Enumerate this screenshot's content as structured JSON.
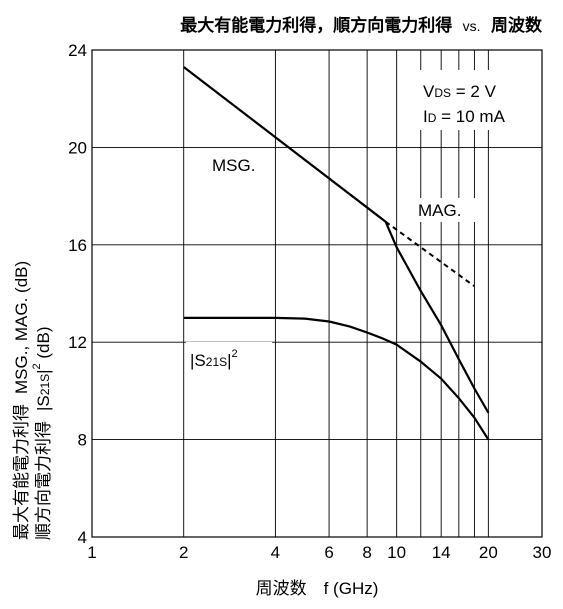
{
  "chart_data": {
    "type": "line",
    "title": {
      "left": "最大有能電力利得，順方向電力利得",
      "vs": "vs.",
      "right": "周波数"
    },
    "xlabel": "周波数　f (GHz)",
    "ylabel": {
      "line1": "最大有能電力利得",
      "line2": "順方向電力利得",
      "unit1": "MSG., MAG.  (dB)",
      "unit2_prefix": "|S",
      "unit2_sub": "21S",
      "unit2_bar": "|",
      "unit2_sup": "2",
      "unit2_suffix": " (dB)"
    },
    "xscale": "log",
    "xlim": [
      1,
      30
    ],
    "ylim": [
      4,
      24
    ],
    "grid": true,
    "x_ticks": [
      1,
      2,
      4,
      6,
      8,
      10,
      14,
      20,
      30
    ],
    "x_tick_labels": [
      "1",
      "2",
      "4",
      "6",
      "8",
      "10",
      "14",
      "20",
      "30"
    ],
    "x_grid": [
      2,
      4,
      6,
      8,
      10,
      12,
      14,
      16,
      18,
      20
    ],
    "y_ticks": [
      4,
      8,
      12,
      16,
      20,
      24
    ],
    "y_tick_labels": [
      "4",
      "8",
      "12",
      "16",
      "20",
      "24"
    ],
    "conditions": {
      "vds_prefix": "V",
      "vds_sub": "DS",
      "vds_value": " = 2 V",
      "id_prefix": "I",
      "id_sub": "D",
      "id_value": " = 10 mA"
    },
    "series": [
      {
        "name": "MSG.",
        "style": "solid",
        "x": [
          2,
          9.2
        ],
        "y": [
          23.3,
          16.95
        ]
      },
      {
        "name": "MAG.",
        "style": "solid",
        "x": [
          9.2,
          10,
          12,
          14,
          16,
          18,
          20
        ],
        "y": [
          16.95,
          15.9,
          14.1,
          12.7,
          11.3,
          10.1,
          9.1
        ]
      },
      {
        "name": "MAG. (dashed)",
        "style": "dashed",
        "x": [
          9.2,
          18
        ],
        "y": [
          16.95,
          14.3
        ]
      },
      {
        "name": "|S21S|²",
        "style": "solid",
        "x": [
          2,
          3,
          4,
          5,
          6,
          7,
          8,
          9,
          10,
          12,
          14,
          16,
          18,
          20
        ],
        "y": [
          13.0,
          13.0,
          13.0,
          12.97,
          12.85,
          12.65,
          12.4,
          12.15,
          11.9,
          11.2,
          10.5,
          9.7,
          8.9,
          8.0
        ]
      }
    ],
    "annotations": {
      "msg": "MSG.",
      "mag": "MAG.",
      "s21_prefix": "|S",
      "s21_sub": "21S",
      "s21_bar": "|",
      "s21_sup": "2"
    }
  }
}
